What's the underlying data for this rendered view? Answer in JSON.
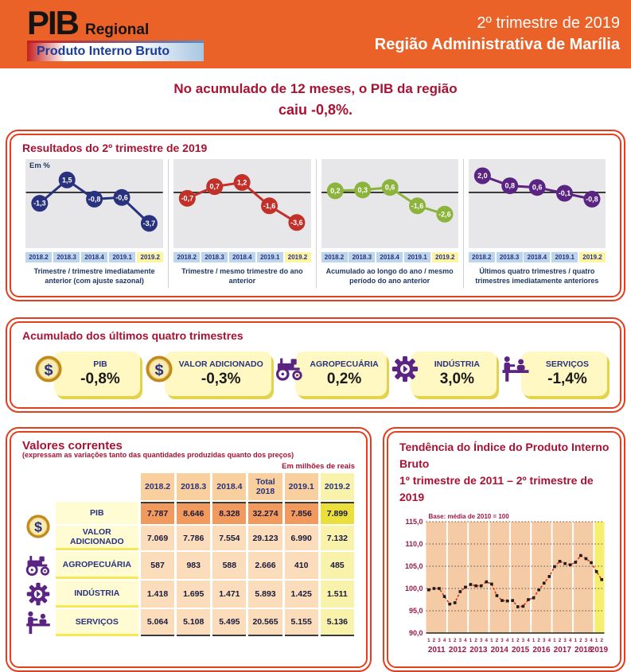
{
  "header": {
    "logo_title": "PIB",
    "logo_subtitle": "Regional",
    "logo_tagline": "Produto Interno Bruto",
    "period": "2º trimestre de 2019",
    "region": "Região Administrativa de Marília",
    "accent_color": "#EA6228"
  },
  "intro": {
    "line1": "No acumulado de 12 meses, o PIB da região",
    "line2": "caiu -0,8%."
  },
  "results": {
    "title": "Resultados do 2º trimestre de 2019",
    "unit_label": "Em %",
    "categories": [
      "2018.2",
      "2018.3",
      "2018.4",
      "2019.1",
      "2019.2"
    ],
    "highlight_category": "2019.2",
    "charts": [
      {
        "caption": "Trimestre / trimestre imediatamente anterior (com ajuste sazonal)",
        "color": "#28327E",
        "values": [
          -1.3,
          1.5,
          -0.8,
          -0.6,
          -3.7
        ],
        "labels": [
          "-1,3",
          "1,5",
          "-0,8",
          "-0,6",
          "-3,7"
        ]
      },
      {
        "caption": "Trimestre / mesmo trimestre do ano anterior",
        "color": "#C2302A",
        "values": [
          -0.7,
          0.7,
          1.2,
          -1.6,
          -3.6
        ],
        "labels": [
          "-0,7",
          "0,7",
          "1,2",
          "-1,6",
          "-3,6"
        ]
      },
      {
        "caption": "Acumulado ao longo do ano / mesmo período do ano anterior",
        "color": "#8CB43C",
        "values": [
          0.2,
          0.3,
          0.6,
          -1.6,
          -2.6
        ],
        "labels": [
          "0,2",
          "0,3",
          "0,6",
          "-1,6",
          "-2,6"
        ]
      },
      {
        "caption": "Últimos quatro trimestres / quatro trimestres imediatamente anteriores",
        "color": "#5B2483",
        "values": [
          2.0,
          0.8,
          0.6,
          -0.1,
          -0.8
        ],
        "labels": [
          "2,0",
          "0,8",
          "0,6",
          "-0,1",
          "-0,8"
        ]
      }
    ]
  },
  "accumulated": {
    "title": "Acumulado dos últimos quatro trimestres",
    "items": [
      {
        "icon": "coin-icon",
        "label": "PIB",
        "value": "-0,8%"
      },
      {
        "icon": "coin-icon",
        "label": "VALOR ADICIONADO",
        "value": "-0,3%"
      },
      {
        "icon": "tractor-icon",
        "label": "AGROPECUÁRIA",
        "value": "0,2%"
      },
      {
        "icon": "gear-icon",
        "label": "INDÚSTRIA",
        "value": "3,0%"
      },
      {
        "icon": "people-icon",
        "label": "SERVIÇOS",
        "value": "-1,4%"
      }
    ]
  },
  "current_values": {
    "title": "Valores correntes",
    "subtitle": "(expressam as variações tanto das quantidades produzidas quanto dos preços)",
    "unit": "Em milhões de reais",
    "columns": [
      "2018.2",
      "2018.3",
      "2018.4",
      "Total 2018",
      "2019.1",
      "2019.2"
    ],
    "rows": [
      {
        "icon": "coin-icon",
        "label": "PIB",
        "emphasis": true,
        "values": [
          "7.787",
          "8.646",
          "8.328",
          "32.274",
          "7.856",
          "7.899"
        ]
      },
      {
        "icon": "coin-icon",
        "label": "VALOR ADICIONADO",
        "emphasis": false,
        "values": [
          "7.069",
          "7.786",
          "7.554",
          "29.123",
          "6.990",
          "7.132"
        ]
      },
      {
        "icon": "tractor-icon",
        "label": "AGROPECUÁRIA",
        "emphasis": false,
        "values": [
          "587",
          "983",
          "588",
          "2.666",
          "410",
          "485"
        ]
      },
      {
        "icon": "gear-icon",
        "label": "INDÚSTRIA",
        "emphasis": false,
        "values": [
          "1.418",
          "1.695",
          "1.471",
          "5.893",
          "1.425",
          "1.511"
        ]
      },
      {
        "icon": "people-icon",
        "label": "SERVIÇOS",
        "emphasis": false,
        "values": [
          "5.064",
          "5.108",
          "5.495",
          "20.565",
          "5.155",
          "5.136"
        ]
      }
    ]
  },
  "trend": {
    "title_line1": "Tendência do Índice do Produto Interno Bruto",
    "title_line2": "1º trimestre de 2011 – 2º trimestre de 2019",
    "base_note": "Base: média de 2010 = 100",
    "y_ticks": [
      {
        "label": "115,0",
        "value": 115
      },
      {
        "label": "110,0",
        "value": 110
      },
      {
        "label": "105,0",
        "value": 105
      },
      {
        "label": "100,0",
        "value": 100
      },
      {
        "label": "95,0",
        "value": 95
      },
      {
        "label": "90,0",
        "value": 90
      }
    ],
    "ylim": [
      90,
      115
    ],
    "line_color": "#E2331F",
    "marker_color": "#1a1a1a",
    "years": [
      {
        "year": "2011",
        "quarters": [
          "1",
          "2",
          "3",
          "4"
        ],
        "values": [
          99.7,
          100.0,
          100.0,
          98.2
        ],
        "highlight": false
      },
      {
        "year": "2012",
        "quarters": [
          "1",
          "2",
          "3",
          "4"
        ],
        "values": [
          96.5,
          96.8,
          99.3,
          100.3
        ],
        "highlight": false
      },
      {
        "year": "2013",
        "quarters": [
          "1",
          "2",
          "3",
          "4"
        ],
        "values": [
          100.9,
          100.6,
          100.6,
          101.5
        ],
        "highlight": false
      },
      {
        "year": "2014",
        "quarters": [
          "1",
          "2",
          "3",
          "4"
        ],
        "values": [
          101.0,
          98.4,
          97.3,
          97.2
        ],
        "highlight": false
      },
      {
        "year": "2015",
        "quarters": [
          "1",
          "2",
          "3",
          "4"
        ],
        "values": [
          97.3,
          95.9,
          96.0,
          97.5
        ],
        "highlight": false
      },
      {
        "year": "2016",
        "quarters": [
          "1",
          "2",
          "3",
          "4"
        ],
        "values": [
          97.9,
          99.7,
          101.2,
          102.7
        ],
        "highlight": false
      },
      {
        "year": "2017",
        "quarters": [
          "1",
          "2",
          "3",
          "4"
        ],
        "values": [
          104.9,
          106.1,
          105.6,
          105.3
        ],
        "highlight": false
      },
      {
        "year": "2018",
        "quarters": [
          "1",
          "2",
          "3",
          "4"
        ],
        "values": [
          105.9,
          107.4,
          106.7,
          105.8
        ],
        "highlight": false
      },
      {
        "year": "2019",
        "quarters": [
          "1",
          "2"
        ],
        "values": [
          103.8,
          102.0
        ],
        "highlight": true
      }
    ]
  },
  "chart_data": [
    {
      "type": "line",
      "title": "Trimestre / trimestre imediatamente anterior (com ajuste sazonal)",
      "categories": [
        "2018.2",
        "2018.3",
        "2018.4",
        "2019.1",
        "2019.2"
      ],
      "values": [
        -1.3,
        1.5,
        -0.8,
        -0.6,
        -3.7
      ],
      "ylabel": "Em %",
      "color": "#28327E"
    },
    {
      "type": "line",
      "title": "Trimestre / mesmo trimestre do ano anterior",
      "categories": [
        "2018.2",
        "2018.3",
        "2018.4",
        "2019.1",
        "2019.2"
      ],
      "values": [
        -0.7,
        0.7,
        1.2,
        -1.6,
        -3.6
      ],
      "ylabel": "Em %",
      "color": "#C2302A"
    },
    {
      "type": "line",
      "title": "Acumulado ao longo do ano / mesmo período do ano anterior",
      "categories": [
        "2018.2",
        "2018.3",
        "2018.4",
        "2019.1",
        "2019.2"
      ],
      "values": [
        0.2,
        0.3,
        0.6,
        -1.6,
        -2.6
      ],
      "ylabel": "Em %",
      "color": "#8CB43C"
    },
    {
      "type": "line",
      "title": "Últimos quatro trimestres / quatro trimestres imediatamente anteriores",
      "categories": [
        "2018.2",
        "2018.3",
        "2018.4",
        "2019.1",
        "2019.2"
      ],
      "values": [
        2.0,
        0.8,
        0.6,
        -0.1,
        -0.8
      ],
      "ylabel": "Em %",
      "color": "#5B2483"
    },
    {
      "type": "line",
      "title": "Tendência do Índice do Produto Interno Bruto (1º trimestre de 2011 – 2º trimestre de 2019)",
      "x": [
        "2011.1",
        "2011.2",
        "2011.3",
        "2011.4",
        "2012.1",
        "2012.2",
        "2012.3",
        "2012.4",
        "2013.1",
        "2013.2",
        "2013.3",
        "2013.4",
        "2014.1",
        "2014.2",
        "2014.3",
        "2014.4",
        "2015.1",
        "2015.2",
        "2015.3",
        "2015.4",
        "2016.1",
        "2016.2",
        "2016.3",
        "2016.4",
        "2017.1",
        "2017.2",
        "2017.3",
        "2017.4",
        "2018.1",
        "2018.2",
        "2018.3",
        "2018.4",
        "2019.1",
        "2019.2"
      ],
      "values": [
        99.7,
        100.0,
        100.0,
        98.2,
        96.5,
        96.8,
        99.3,
        100.3,
        100.9,
        100.6,
        100.6,
        101.5,
        101.0,
        98.4,
        97.3,
        97.2,
        97.3,
        95.9,
        96.0,
        97.5,
        97.9,
        99.7,
        101.2,
        102.7,
        104.9,
        106.1,
        105.6,
        105.3,
        105.9,
        107.4,
        106.7,
        105.8,
        103.8,
        102.0
      ],
      "ylim": [
        90,
        115
      ],
      "annotation": "Base: média de 2010 = 100"
    },
    {
      "type": "table",
      "title": "Valores correntes (em milhões de reais)",
      "columns": [
        "2018.2",
        "2018.3",
        "2018.4",
        "Total 2018",
        "2019.1",
        "2019.2"
      ],
      "rows": {
        "PIB": [
          7787,
          8646,
          8328,
          32274,
          7856,
          7899
        ],
        "VALOR ADICIONADO": [
          7069,
          7786,
          7554,
          29123,
          6990,
          7132
        ],
        "AGROPECUÁRIA": [
          587,
          983,
          588,
          2666,
          410,
          485
        ],
        "INDÚSTRIA": [
          1418,
          1695,
          1471,
          5893,
          1425,
          1511
        ],
        "SERVIÇOS": [
          5064,
          5108,
          5495,
          20565,
          5155,
          5136
        ]
      }
    }
  ]
}
